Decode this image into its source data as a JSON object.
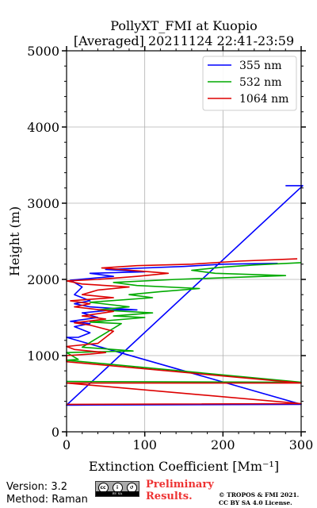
{
  "chart_data": {
    "type": "line",
    "title": "PollyXT_FMI at Kuopio",
    "subtitle": "[Averaged] 20211124 22:41-23:59",
    "xlabel": "Extinction Coefficient [Mm⁻¹]",
    "ylabel": "Height (m)",
    "xlim": [
      0,
      300
    ],
    "ylim": [
      0,
      5000
    ],
    "xticks": [
      0,
      100,
      200,
      300
    ],
    "yticks": [
      0,
      1000,
      2000,
      3000,
      4000,
      5000
    ],
    "grid": true,
    "legend_position": "top-right",
    "series": [
      {
        "name": "355 nm",
        "color": "#0000ff",
        "points": [
          [
            280,
            3230
          ],
          [
            300,
            3230
          ],
          [
            302,
            3230
          ],
          [
            0,
            350
          ],
          [
            300,
            360
          ],
          [
            0,
            1240
          ],
          [
            15,
            1240
          ],
          [
            30,
            1300
          ],
          [
            10,
            1380
          ],
          [
            30,
            1420
          ],
          [
            5,
            1450
          ],
          [
            40,
            1500
          ],
          [
            20,
            1560
          ],
          [
            60,
            1600
          ],
          [
            90,
            1600
          ],
          [
            30,
            1640
          ],
          [
            10,
            1680
          ],
          [
            30,
            1720
          ],
          [
            10,
            1800
          ],
          [
            20,
            1900
          ],
          [
            5,
            1990
          ],
          [
            60,
            2040
          ],
          [
            30,
            2080
          ],
          [
            100,
            2100
          ],
          [
            50,
            2130
          ],
          [
            150,
            2170
          ],
          [
            200,
            2200
          ],
          [
            270,
            2210
          ]
        ]
      },
      {
        "name": "532 nm",
        "color": "#00aa00",
        "points": [
          [
            0,
            660
          ],
          [
            300,
            650
          ],
          [
            0,
            940
          ],
          [
            15,
            950
          ],
          [
            0,
            1040
          ],
          [
            40,
            1050
          ],
          [
            85,
            1060
          ],
          [
            60,
            1080
          ],
          [
            20,
            1110
          ],
          [
            70,
            1420
          ],
          [
            30,
            1440
          ],
          [
            100,
            1500
          ],
          [
            60,
            1520
          ],
          [
            110,
            1560
          ],
          [
            40,
            1600
          ],
          [
            80,
            1640
          ],
          [
            30,
            1700
          ],
          [
            110,
            1760
          ],
          [
            80,
            1800
          ],
          [
            120,
            1840
          ],
          [
            170,
            1880
          ],
          [
            90,
            1920
          ],
          [
            60,
            1960
          ],
          [
            140,
            2000
          ],
          [
            280,
            2050
          ],
          [
            190,
            2080
          ],
          [
            160,
            2120
          ],
          [
            200,
            2160
          ],
          [
            240,
            2190
          ],
          [
            300,
            2220
          ]
        ]
      },
      {
        "name": "1064 nm",
        "color": "#dd0000",
        "points": [
          [
            0,
            360
          ],
          [
            300,
            370
          ],
          [
            0,
            640
          ],
          [
            300,
            640
          ],
          [
            0,
            920
          ],
          [
            0,
            1000
          ],
          [
            30,
            1020
          ],
          [
            50,
            1040
          ],
          [
            10,
            1080
          ],
          [
            0,
            1120
          ],
          [
            40,
            1160
          ],
          [
            60,
            1320
          ],
          [
            30,
            1400
          ],
          [
            10,
            1430
          ],
          [
            50,
            1480
          ],
          [
            20,
            1520
          ],
          [
            60,
            1580
          ],
          [
            10,
            1640
          ],
          [
            30,
            1680
          ],
          [
            5,
            1720
          ],
          [
            60,
            1760
          ],
          [
            20,
            1800
          ],
          [
            40,
            1860
          ],
          [
            80,
            1900
          ],
          [
            20,
            1940
          ],
          [
            0,
            1980
          ],
          [
            40,
            2000
          ],
          [
            90,
            2040
          ],
          [
            130,
            2080
          ],
          [
            45,
            2150
          ],
          [
            90,
            2180
          ],
          [
            160,
            2200
          ],
          [
            220,
            2240
          ],
          [
            295,
            2270
          ]
        ]
      }
    ]
  },
  "footer": {
    "version": "Version: 3.2",
    "method": "Method: Raman",
    "cc_label": "BY SA",
    "preliminary_line1": "Preliminary",
    "preliminary_line2": "Results.",
    "license_line1": "© TROPOS & FMI 2021.",
    "license_line2": "CC BY SA 4.0 License."
  }
}
